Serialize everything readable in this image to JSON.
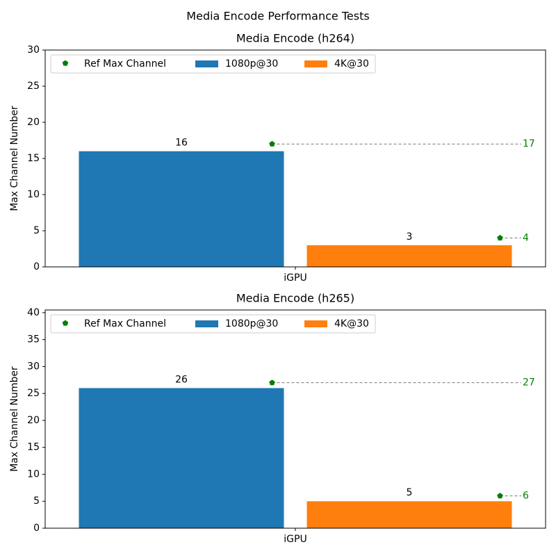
{
  "title": "Media Encode Performance Tests",
  "chart_data": [
    {
      "type": "bar",
      "title": "Media Encode (h264)",
      "ylabel": "Max Channel Number",
      "categories": [
        "iGPU"
      ],
      "series": [
        {
          "name": "1080p@30",
          "color": "#1f77b4",
          "values": [
            16
          ]
        },
        {
          "name": "4K@30",
          "color": "#ff7f0e",
          "values": [
            3
          ]
        }
      ],
      "reference": {
        "name": "Ref Max Channel",
        "color": "green",
        "values": [
          17,
          4
        ]
      },
      "ylim": [
        0,
        30
      ],
      "yticks": [
        0,
        5,
        10,
        15,
        20,
        25,
        30
      ]
    },
    {
      "type": "bar",
      "title": "Media Encode (h265)",
      "ylabel": "Max Channel Number",
      "categories": [
        "iGPU"
      ],
      "series": [
        {
          "name": "1080p@30",
          "color": "#1f77b4",
          "values": [
            26
          ]
        },
        {
          "name": "4K@30",
          "color": "#ff7f0e",
          "values": [
            5
          ]
        }
      ],
      "reference": {
        "name": "Ref Max Channel",
        "color": "green",
        "values": [
          27,
          6
        ]
      },
      "ylim": [
        0,
        40.5
      ],
      "yticks": [
        0,
        5,
        10,
        15,
        20,
        25,
        30,
        35,
        40
      ]
    }
  ]
}
